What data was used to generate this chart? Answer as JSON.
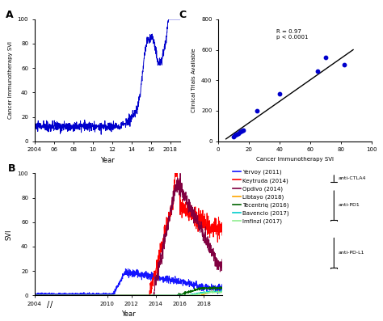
{
  "panel_A": {
    "title": "A",
    "ylabel": "Cancer Immunotherapy SVI",
    "xlabel": "Year",
    "xlim": [
      2004,
      2019
    ],
    "ylim": [
      0,
      100
    ],
    "xticks": [
      2004,
      2006,
      2008,
      2010,
      2012,
      2014,
      2016,
      2018
    ],
    "xticklabels": [
      "2004",
      "06",
      "08",
      "10",
      "12",
      "14",
      "16",
      "2018"
    ],
    "color": "#0000CC"
  },
  "panel_B": {
    "title": "B",
    "ylabel": "SVI",
    "xlabel": "Year",
    "xlim": [
      2004,
      2019.5
    ],
    "ylim": [
      0,
      100
    ],
    "xticks": [
      2004,
      2010,
      2012,
      2014,
      2016,
      2018
    ],
    "xticklabels": [
      "2004",
      "2010",
      "2012",
      "2014",
      "2016",
      "2018"
    ],
    "lines": [
      {
        "label": "Yervoy (2011)",
        "color": "#1414FF"
      },
      {
        "label": "Keytruda (2014)",
        "color": "#FF0000"
      },
      {
        "label": "Opdivo (2014)",
        "color": "#800040"
      },
      {
        "label": "Libtayo (2018)",
        "color": "#FFA500"
      },
      {
        "label": "Tecentriq (2016)",
        "color": "#006400"
      },
      {
        "label": "Bavencio (2017)",
        "color": "#00CCCC"
      },
      {
        "label": "Imfinzi (2017)",
        "color": "#90EE90"
      }
    ]
  },
  "panel_C": {
    "title": "C",
    "xlabel": "Cancer Immunotherapy SVI",
    "ylabel": "Clinical Trials Available",
    "xlim": [
      0,
      100
    ],
    "ylim": [
      0,
      800
    ],
    "xticks": [
      0,
      20,
      40,
      60,
      80,
      100
    ],
    "yticks": [
      0,
      200,
      400,
      600,
      800
    ],
    "scatter_x": [
      10,
      11,
      12,
      13,
      14,
      15,
      16,
      25,
      40,
      65,
      70,
      82
    ],
    "scatter_y": [
      30,
      40,
      45,
      50,
      60,
      65,
      75,
      200,
      310,
      460,
      550,
      500
    ],
    "line_x": [
      5,
      88
    ],
    "line_y": [
      15,
      600
    ],
    "annotation": "R = 0.97\np < 0.0001",
    "color": "#0000CC"
  },
  "background_color": "#FFFFFF"
}
